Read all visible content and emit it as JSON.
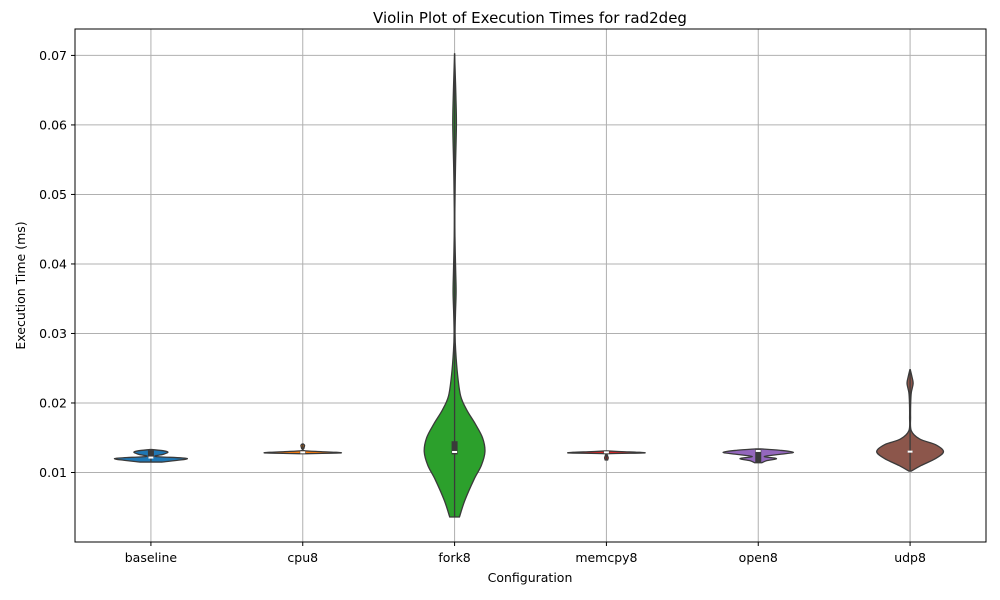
{
  "chart_data": {
    "type": "violin",
    "title": "Violin Plot of Execution Times for rad2deg",
    "xlabel": "Configuration",
    "ylabel": "Execution Time (ms)",
    "ylim": [
      0,
      0.0738
    ],
    "yticks": [
      "0.01",
      "0.02",
      "0.03",
      "0.04",
      "0.05",
      "0.06",
      "0.07"
    ],
    "ytick_values": [
      0.01,
      0.02,
      0.03,
      0.04,
      0.05,
      0.06,
      0.07
    ],
    "grid": true,
    "categories": [
      "baseline",
      "cpu8",
      "fork8",
      "memcpy8",
      "open8",
      "udp8"
    ],
    "series": [
      {
        "category": "baseline",
        "color": "#1f77b4",
        "min": 0.0115,
        "max": 0.0133,
        "median": 0.01215,
        "q1": 0.0121,
        "q3": 0.0132,
        "density": [
          [
            0.0115,
            0.18
          ],
          [
            0.012,
            0.6
          ],
          [
            0.0123,
            0.08
          ],
          [
            0.0126,
            0.2
          ],
          [
            0.0129,
            0.28
          ],
          [
            0.0131,
            0.22
          ],
          [
            0.0133,
            0.02
          ]
        ]
      },
      {
        "category": "cpu8",
        "color": "#ff7f0e",
        "min": 0.0128,
        "max": 0.0141,
        "median": 0.0129,
        "q1": 0.0128,
        "q3": 0.013,
        "density": [
          [
            0.0127,
            0.02
          ],
          [
            0.0128,
            0.6
          ],
          [
            0.0129,
            0.55
          ],
          [
            0.013,
            0.3
          ],
          [
            0.01315,
            0.02
          ],
          [
            0.0135,
            0.02
          ],
          [
            0.0139,
            0.03
          ],
          [
            0.0141,
            0.01
          ]
        ]
      },
      {
        "category": "fork8",
        "color": "#2ca02c",
        "min": 0.0036,
        "max": 0.0703,
        "median": 0.01295,
        "q1": 0.0126,
        "q3": 0.0145,
        "density": [
          [
            0.0036,
            0.08
          ],
          [
            0.006,
            0.17
          ],
          [
            0.009,
            0.32
          ],
          [
            0.011,
            0.44
          ],
          [
            0.013,
            0.5
          ],
          [
            0.015,
            0.46
          ],
          [
            0.017,
            0.34
          ],
          [
            0.019,
            0.2
          ],
          [
            0.021,
            0.1
          ],
          [
            0.024,
            0.05
          ],
          [
            0.0275,
            0.018
          ],
          [
            0.03,
            0.008
          ],
          [
            0.033,
            0.015
          ],
          [
            0.036,
            0.025
          ],
          [
            0.039,
            0.018
          ],
          [
            0.044,
            0.006
          ],
          [
            0.048,
            0.005
          ],
          [
            0.054,
            0.015
          ],
          [
            0.06,
            0.03
          ],
          [
            0.064,
            0.022
          ],
          [
            0.067,
            0.012
          ],
          [
            0.0703,
            0.0
          ]
        ]
      },
      {
        "category": "memcpy8",
        "color": "#d62728",
        "min": 0.0118,
        "max": 0.0131,
        "median": 0.0129,
        "q1": 0.0128,
        "q3": 0.013,
        "density": [
          [
            0.0118,
            0.02
          ],
          [
            0.0121,
            0.03
          ],
          [
            0.0124,
            0.02
          ],
          [
            0.0127,
            0.03
          ],
          [
            0.0128,
            0.6
          ],
          [
            0.0129,
            0.55
          ],
          [
            0.013,
            0.25
          ],
          [
            0.0131,
            0.02
          ]
        ]
      },
      {
        "category": "open8",
        "color": "#9467bd",
        "min": 0.0114,
        "max": 0.0134,
        "median": 0.0131,
        "q1": 0.0114,
        "q3": 0.0133,
        "density": [
          [
            0.0114,
            0.06
          ],
          [
            0.0117,
            0.14
          ],
          [
            0.012,
            0.3
          ],
          [
            0.0123,
            0.1
          ],
          [
            0.0126,
            0.35
          ],
          [
            0.0129,
            0.58
          ],
          [
            0.0132,
            0.35
          ],
          [
            0.0134,
            0.04
          ]
        ]
      },
      {
        "category": "udp8",
        "color": "#8c564b",
        "min": 0.0102,
        "max": 0.0248,
        "median": 0.013,
        "q1": 0.0129,
        "q3": 0.0131,
        "density": [
          [
            0.0102,
            0.02
          ],
          [
            0.011,
            0.18
          ],
          [
            0.012,
            0.42
          ],
          [
            0.013,
            0.55
          ],
          [
            0.014,
            0.42
          ],
          [
            0.0148,
            0.16
          ],
          [
            0.016,
            0.02
          ],
          [
            0.018,
            0.008
          ],
          [
            0.02,
            0.01
          ],
          [
            0.0215,
            0.02
          ],
          [
            0.0228,
            0.05
          ],
          [
            0.0238,
            0.03
          ],
          [
            0.0248,
            0.003
          ]
        ]
      }
    ]
  }
}
